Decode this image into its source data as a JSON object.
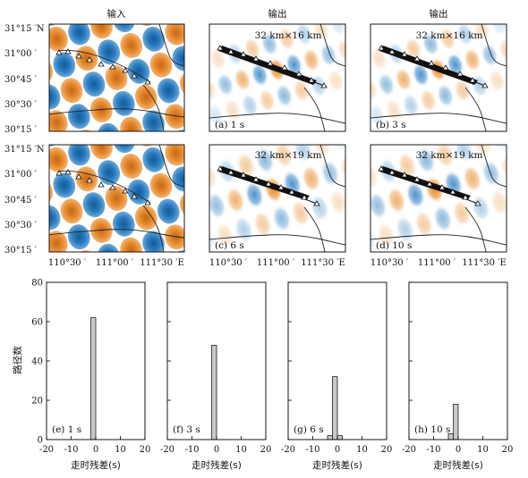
{
  "maps": {
    "headers": [
      "输入",
      "输出",
      "输出"
    ],
    "lat_ticks": [
      "31°15 ′N",
      "31°00 ′",
      "30°45 ′",
      "30°30 ′",
      "30°15 ′"
    ],
    "lon_ticks": [
      "110°30 ′",
      "111°00 ′",
      "111°30 ′E"
    ],
    "row1_size_label": "32 km×16 km",
    "row2_size_label": "32 km×19 km",
    "panel_labels": [
      "(a) 1 s",
      "(b) 3 s",
      "(c) 6 s",
      "(d) 10 s"
    ],
    "colors": {
      "positive": "#e6892b",
      "negative": "#2a7cc0",
      "ray": "#111111",
      "station": "#ffffff"
    }
  },
  "chart_data": {
    "type": "bar",
    "ylabel": "路径数",
    "xlabel": "走时残差(s)",
    "xlim": [
      -20,
      20
    ],
    "ylim": [
      0,
      80
    ],
    "xticks": [
      "-20",
      "-10",
      "0",
      "10",
      "20"
    ],
    "yticks": [
      "0",
      "20",
      "40",
      "60",
      "80"
    ],
    "bin_width": 2,
    "bar_color": "#c8c8c8",
    "panels": [
      {
        "label": "(e) 1 s",
        "bins": [
          {
            "x": -1,
            "count": 62
          }
        ]
      },
      {
        "label": "(f) 3 s",
        "bins": [
          {
            "x": -1,
            "count": 48
          }
        ]
      },
      {
        "label": "(g) 6 s",
        "bins": [
          {
            "x": -3,
            "count": 2
          },
          {
            "x": -1,
            "count": 32
          },
          {
            "x": 1,
            "count": 2
          }
        ]
      },
      {
        "label": "(h) 10 s",
        "bins": [
          {
            "x": -3,
            "count": 3
          },
          {
            "x": -1,
            "count": 18
          }
        ]
      }
    ]
  }
}
